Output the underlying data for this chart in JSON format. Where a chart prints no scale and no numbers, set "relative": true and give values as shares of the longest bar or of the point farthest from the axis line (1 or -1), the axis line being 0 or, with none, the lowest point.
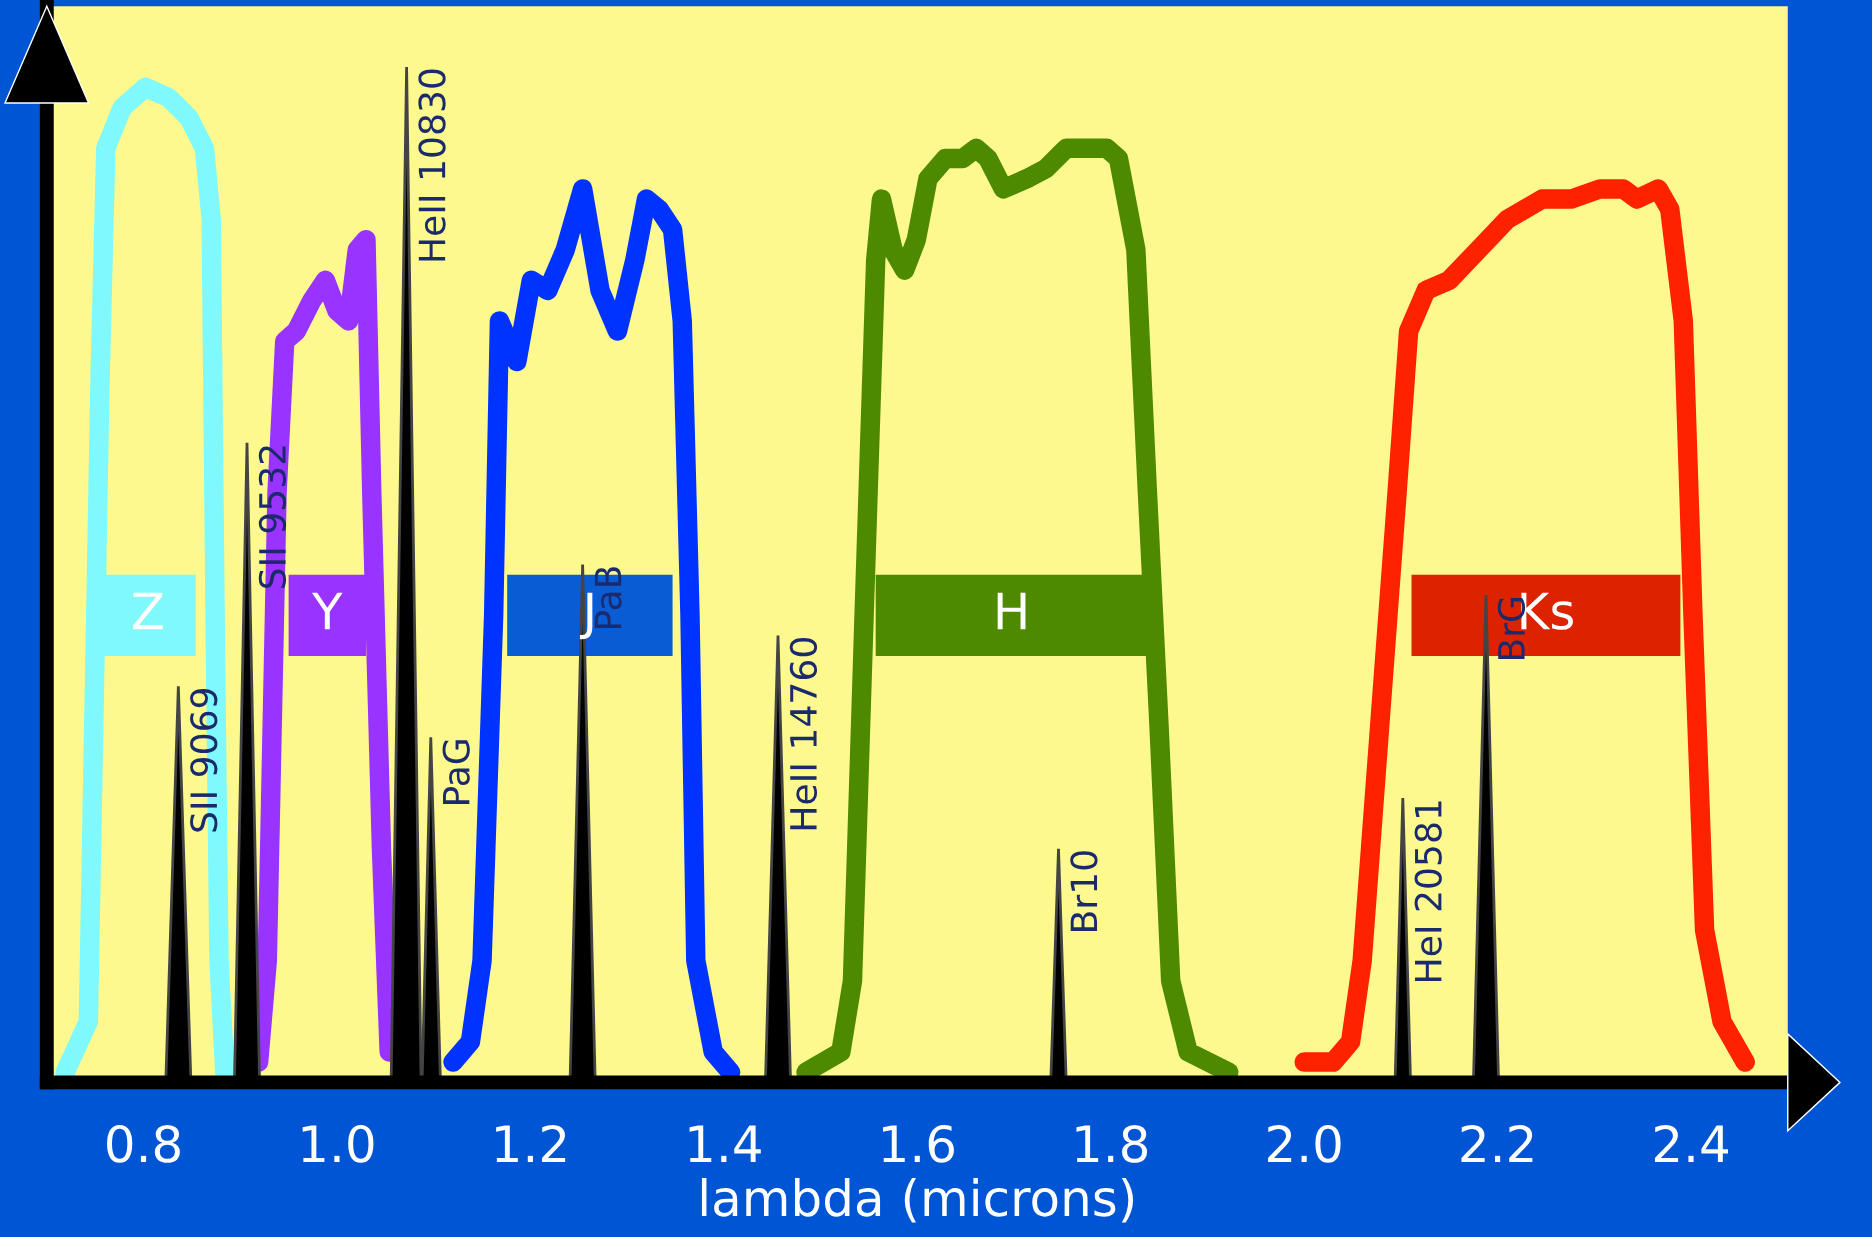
{
  "chart_data": {
    "type": "line",
    "relative": true,
    "xlabel": "lambda (microns)",
    "xlim": [
      0.7,
      2.5
    ],
    "xticks": [
      {
        "value": 0.8,
        "label": "0.8"
      },
      {
        "value": 1.0,
        "label": "1.0"
      },
      {
        "value": 1.2,
        "label": "1.2"
      },
      {
        "value": 1.4,
        "label": "1.4"
      },
      {
        "value": 1.6,
        "label": "1.6"
      },
      {
        "value": 1.8,
        "label": "1.8"
      },
      {
        "value": 2.0,
        "label": "2.0"
      },
      {
        "value": 2.2,
        "label": "2.2"
      },
      {
        "value": 2.4,
        "label": "2.4"
      }
    ],
    "series": [
      {
        "color": "#7ff9fb",
        "x": [
          0.719,
          0.743,
          0.755,
          0.761,
          0.778,
          0.802,
          0.826,
          0.847,
          0.863,
          0.87,
          0.874,
          0.878,
          0.884
        ],
        "values": [
          0.01,
          0.06,
          0.69,
          0.92,
          0.96,
          0.98,
          0.97,
          0.95,
          0.92,
          0.85,
          0.46,
          0.12,
          0.01
        ]
      },
      {
        "color": "#9933ff",
        "x": [
          0.919,
          0.928,
          0.938,
          0.946,
          0.958,
          0.974,
          0.988,
          1.0,
          1.012,
          1.021,
          1.03,
          1.036,
          1.046,
          1.054
        ],
        "values": [
          0.02,
          0.12,
          0.58,
          0.73,
          0.74,
          0.77,
          0.79,
          0.76,
          0.75,
          0.82,
          0.83,
          0.58,
          0.23,
          0.03
        ]
      },
      {
        "color": "#0033ff",
        "x": [
          1.12,
          1.138,
          1.15,
          1.162,
          1.168,
          1.186,
          1.201,
          1.218,
          1.236,
          1.254,
          1.272,
          1.29,
          1.308,
          1.32,
          1.333,
          1.347,
          1.357,
          1.365,
          1.371,
          1.389,
          1.407
        ],
        "values": [
          0.02,
          0.04,
          0.12,
          0.46,
          0.75,
          0.71,
          0.79,
          0.78,
          0.82,
          0.88,
          0.78,
          0.74,
          0.81,
          0.87,
          0.86,
          0.84,
          0.75,
          0.46,
          0.12,
          0.03,
          0.01
        ]
      },
      {
        "color": "#4e8a00",
        "x": [
          1.485,
          1.521,
          1.533,
          1.545,
          1.557,
          1.563,
          1.575,
          1.587,
          1.599,
          1.611,
          1.629,
          1.647,
          1.661,
          1.673,
          1.689,
          1.713,
          1.733,
          1.754,
          1.778,
          1.796,
          1.808,
          1.826,
          1.838,
          1.85,
          1.862,
          1.88,
          1.922
        ],
        "values": [
          0.01,
          0.03,
          0.1,
          0.46,
          0.81,
          0.87,
          0.82,
          0.8,
          0.83,
          0.89,
          0.91,
          0.91,
          0.92,
          0.91,
          0.88,
          0.89,
          0.9,
          0.92,
          0.92,
          0.92,
          0.91,
          0.82,
          0.58,
          0.35,
          0.1,
          0.03,
          0.01
        ]
      },
      {
        "color": "#ff2200",
        "x": [
          2.0,
          2.03,
          2.048,
          2.06,
          2.078,
          2.096,
          2.108,
          2.126,
          2.15,
          2.18,
          2.21,
          2.246,
          2.276,
          2.306,
          2.33,
          2.344,
          2.366,
          2.378,
          2.392,
          2.402,
          2.414,
          2.432,
          2.456
        ],
        "values": [
          0.02,
          0.02,
          0.04,
          0.12,
          0.35,
          0.58,
          0.74,
          0.78,
          0.79,
          0.82,
          0.85,
          0.87,
          0.87,
          0.88,
          0.88,
          0.87,
          0.88,
          0.86,
          0.75,
          0.46,
          0.15,
          0.06,
          0.02
        ]
      },
      {
        "type": "area",
        "color": "#000000",
        "x": [
          0.823,
          0.836,
          0.849
        ],
        "values": [
          0,
          0.39,
          0
        ]
      },
      {
        "type": "area",
        "color": "#000000",
        "x": [
          0.894,
          0.907,
          0.92
        ],
        "values": [
          0,
          0.63,
          0
        ]
      },
      {
        "type": "area",
        "color": "#000000",
        "x": [
          1.056,
          1.072,
          1.087
        ],
        "values": [
          0,
          1,
          0
        ]
      },
      {
        "type": "area",
        "color": "#000000",
        "x": [
          1.088,
          1.097,
          1.107
        ],
        "values": [
          0,
          0.34,
          0
        ]
      },
      {
        "type": "area",
        "color": "#000000",
        "x": [
          1.241,
          1.254,
          1.267
        ],
        "values": [
          0,
          0.51,
          0
        ]
      },
      {
        "type": "area",
        "color": "#000000",
        "x": [
          1.443,
          1.456,
          1.469
        ],
        "values": [
          0,
          0.44,
          0
        ]
      },
      {
        "type": "area",
        "color": "#000000",
        "x": [
          1.738,
          1.746,
          1.754
        ],
        "values": [
          0,
          0.23,
          0
        ]
      },
      {
        "type": "area",
        "color": "#000000",
        "x": [
          2.094,
          2.102,
          2.11
        ],
        "values": [
          0,
          0.28,
          0
        ]
      },
      {
        "type": "area",
        "color": "#000000",
        "x": [
          2.175,
          2.188,
          2.201
        ],
        "values": [
          0,
          0.48,
          0
        ]
      }
    ],
    "bands": [
      {
        "axis": "x",
        "from": 0.755,
        "to": 0.854,
        "label": "Z",
        "color": "#7ff9fb"
      },
      {
        "axis": "x",
        "from": 0.95,
        "to": 1.03,
        "label": "Y",
        "color": "#9933ff"
      },
      {
        "axis": "x",
        "from": 1.176,
        "to": 1.347,
        "label": "J",
        "color": "#0a5cd5"
      },
      {
        "axis": "x",
        "from": 1.557,
        "to": 1.838,
        "label": "H",
        "color": "#4e8a00"
      },
      {
        "axis": "x",
        "from": 2.111,
        "to": 2.389,
        "label": "Ks",
        "color": "#dd2200"
      }
    ],
    "annotations": [
      {
        "text": "SII 9069",
        "x": 0.836,
        "y": 0.39
      },
      {
        "text": "SII 9532",
        "x": 0.907,
        "y": 0.63
      },
      {
        "text": "HeII 10830",
        "x": 1.072,
        "y": 1
      },
      {
        "text": "PaG",
        "x": 1.097,
        "y": 0.34
      },
      {
        "text": "PaB",
        "x": 1.254,
        "y": 0.51
      },
      {
        "text": "HeII 14760",
        "x": 1.456,
        "y": 0.44
      },
      {
        "text": "Br10",
        "x": 1.746,
        "y": 0.23
      },
      {
        "text": "HeI 20581",
        "x": 2.102,
        "y": 0.28
      },
      {
        "text": "BrG",
        "x": 2.188,
        "y": 0.48
      }
    ],
    "grid": false,
    "legend": false,
    "marker": "none",
    "line_style": "solid"
  }
}
